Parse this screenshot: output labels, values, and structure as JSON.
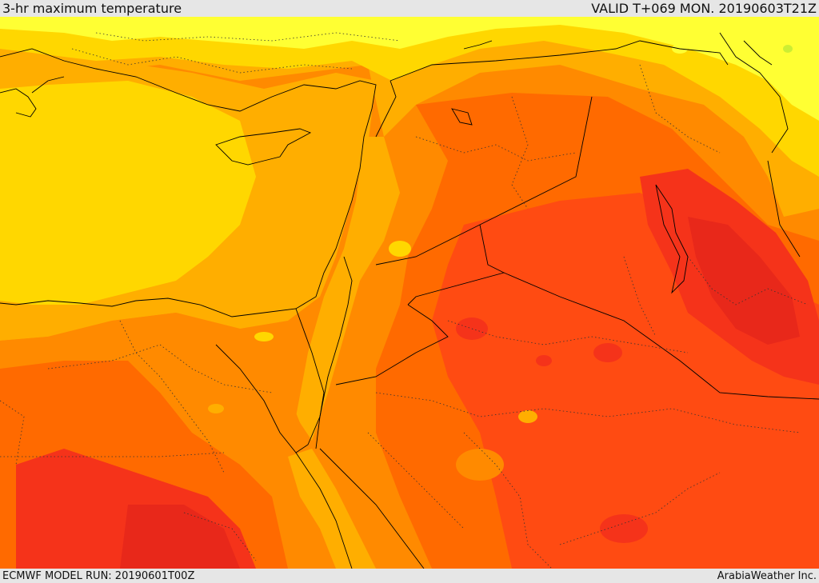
{
  "header": {
    "title": "3-hr maximum temperature",
    "valid_time": "VALID T+069 MON. 20190603T21Z"
  },
  "footer": {
    "model_run": "ECMWF MODEL RUN: 20190601T00Z",
    "provider": "ArabiaWeather Inc."
  },
  "palette": {
    "pale_yellow": "#ffff33",
    "yellow": "#ffd700",
    "gold": "#ffae00",
    "orange": "#ff8a00",
    "dark_orange": "#ff6a00",
    "red_orange": "#ff4b12",
    "red": "#f5331a",
    "line": "#000000"
  }
}
